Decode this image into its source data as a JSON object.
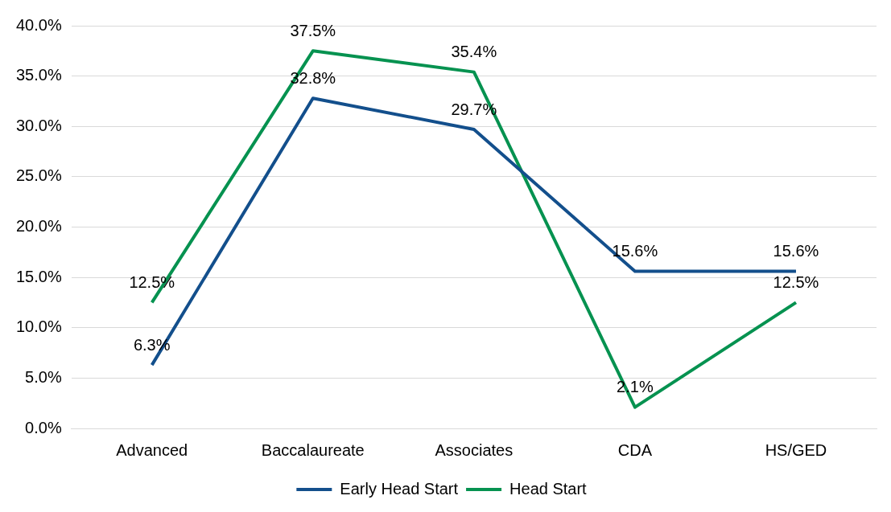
{
  "chart_data": {
    "type": "line",
    "categories": [
      "Advanced",
      "Baccalaureate",
      "Associates",
      "CDA",
      "HS/GED"
    ],
    "series": [
      {
        "name": "Early Head Start",
        "color": "#134f8c",
        "values": [
          6.3,
          32.8,
          29.7,
          15.6,
          15.6
        ],
        "value_labels": [
          "6.3%",
          "32.8%",
          "29.7%",
          "15.6%",
          "15.6%"
        ]
      },
      {
        "name": "Head Start",
        "color": "#069250",
        "values": [
          12.5,
          37.5,
          35.4,
          2.1,
          12.5
        ],
        "value_labels": [
          "12.5%",
          "37.5%",
          "35.4%",
          "2.1%",
          "12.5%"
        ]
      }
    ],
    "ylim": [
      0,
      40
    ],
    "yticks": [
      {
        "value": 0,
        "label": "0.0%"
      },
      {
        "value": 5,
        "label": "5.0%"
      },
      {
        "value": 10,
        "label": "10.0%"
      },
      {
        "value": 15,
        "label": "15.0%"
      },
      {
        "value": 20,
        "label": "20.0%"
      },
      {
        "value": 25,
        "label": "25.0%"
      },
      {
        "value": 30,
        "label": "30.0%"
      },
      {
        "value": 35,
        "label": "35.0%"
      },
      {
        "value": 40,
        "label": "40.0%"
      }
    ],
    "grid": "y",
    "legend": "bottom",
    "marker": "none",
    "line_style": "solid"
  }
}
